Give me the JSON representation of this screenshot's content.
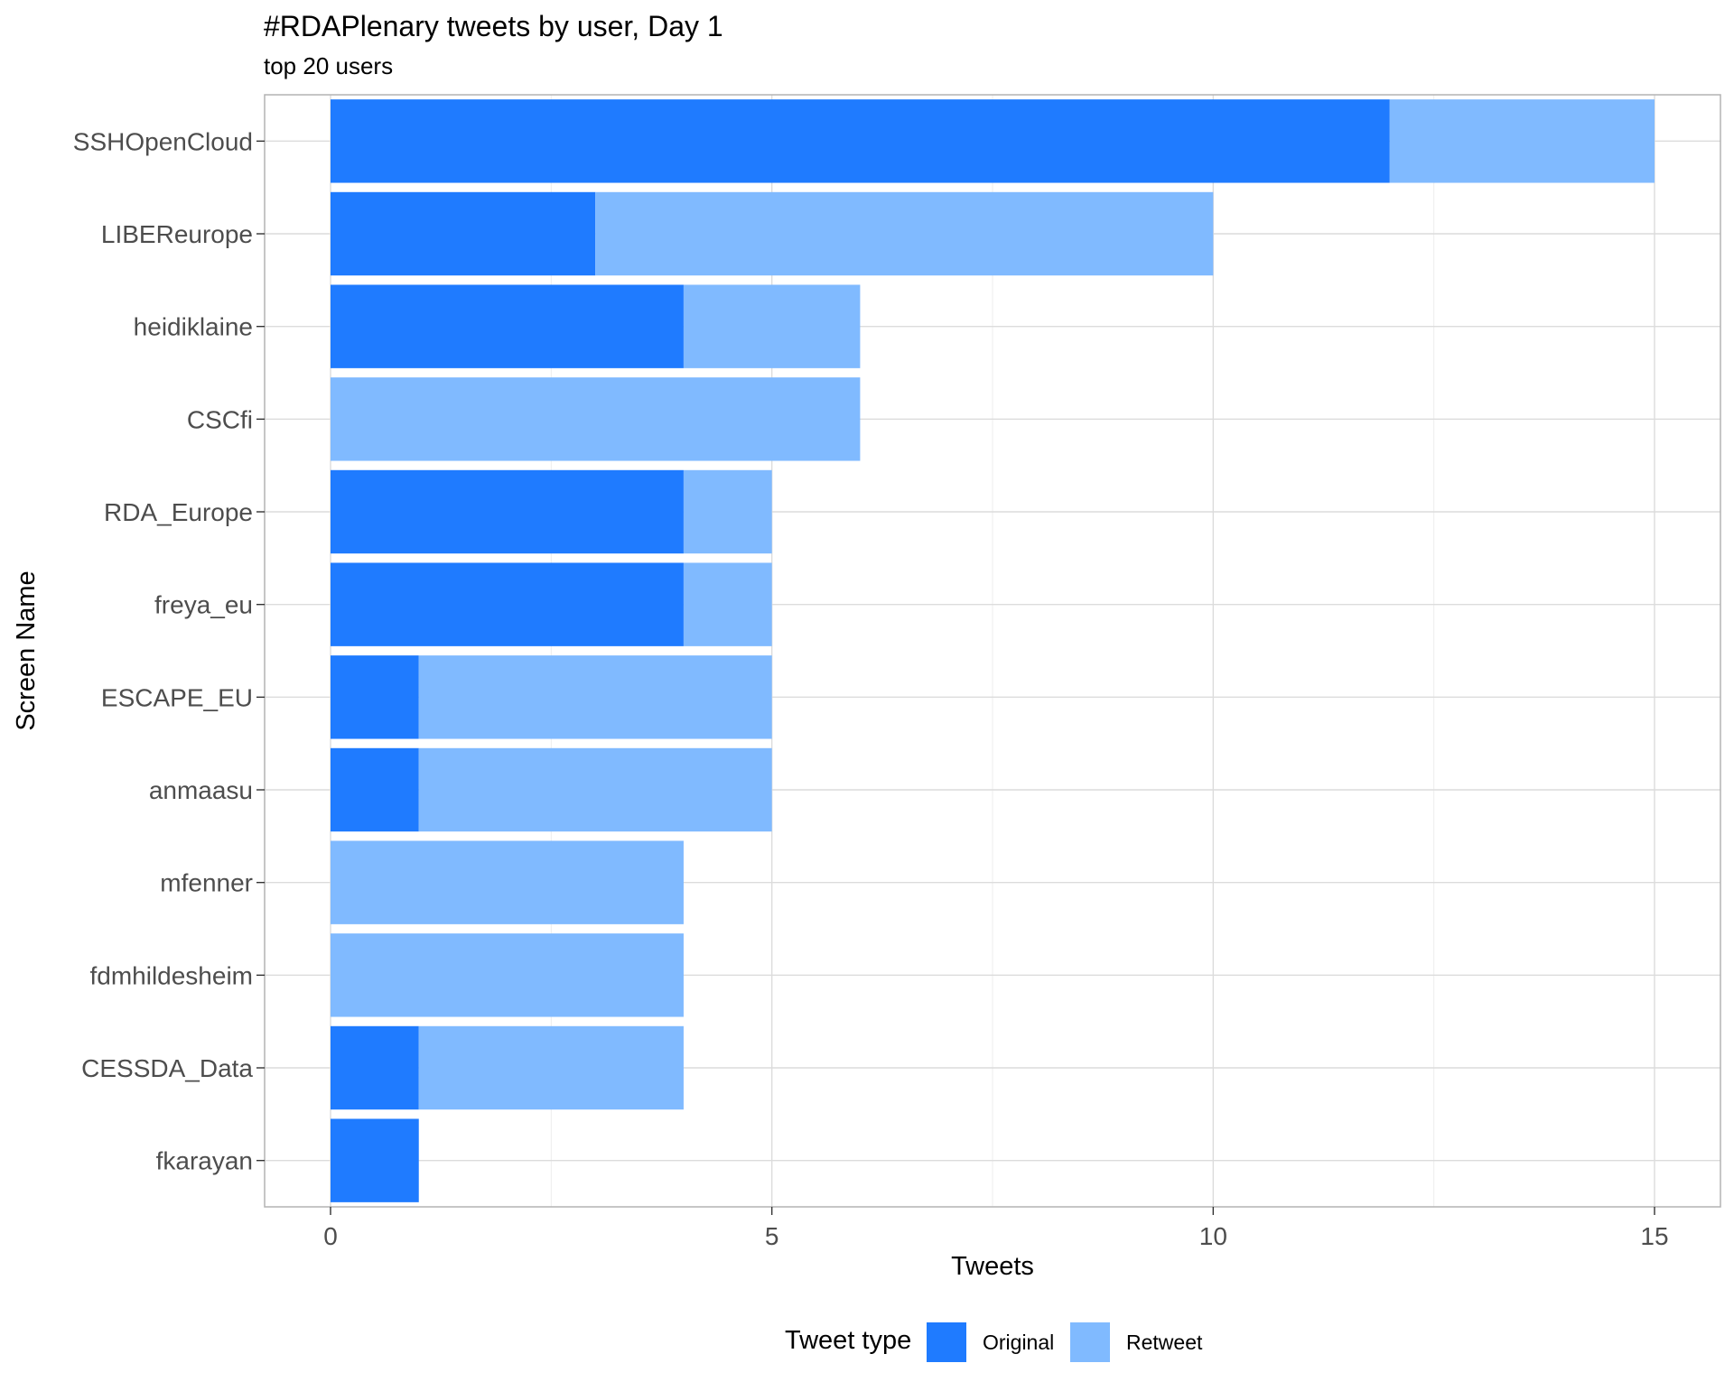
{
  "chart_data": {
    "type": "bar",
    "orientation": "horizontal",
    "stacked": true,
    "title": "#RDAPlenary tweets by user, Day 1",
    "subtitle": "top 20 users",
    "xlabel": "Tweets",
    "ylabel": "Screen Name",
    "xlim": [
      0,
      15
    ],
    "xticks": [
      "0",
      "5",
      "10",
      "15"
    ],
    "grid": true,
    "legend_position": "bottom",
    "legend_title": "Tweet type",
    "categories": [
      "SSHOpenCloud",
      "LIBEReurope",
      "heidiklaine",
      "CSCfi",
      "RDA_Europe",
      "freya_eu",
      "ESCAPE_EU",
      "anmaasu",
      "mfenner",
      "fdmhildesheim",
      "CESSDA_Data",
      "fkarayan"
    ],
    "series": [
      {
        "name": "Original",
        "color": "#1f7bff",
        "values": [
          12,
          3,
          4,
          0,
          4,
          4,
          1,
          1,
          0,
          0,
          1,
          1
        ]
      },
      {
        "name": "Retweet",
        "color": "#80baff",
        "values": [
          3,
          7,
          2,
          6,
          1,
          1,
          4,
          4,
          4,
          4,
          3,
          0
        ]
      }
    ]
  }
}
